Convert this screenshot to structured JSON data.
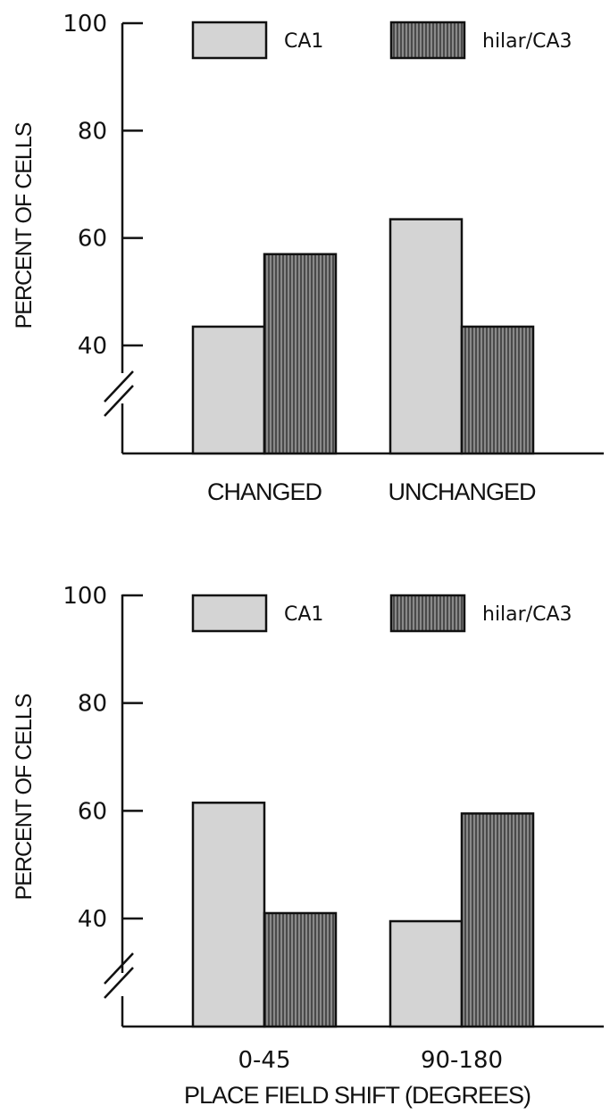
{
  "chart_data": [
    {
      "type": "bar",
      "categories": [
        "CHANGED",
        "UNCHANGED"
      ],
      "series": [
        {
          "name": "CA1",
          "values": [
            43.5,
            63.5
          ],
          "color": "#d4d4d4"
        },
        {
          "name": "hilar/CA3",
          "values": [
            57,
            43.5
          ],
          "color": "#6e6e6e"
        }
      ],
      "ylabel": "PERCENT OF CELLS",
      "xlabel": "",
      "yticks": [
        "40",
        "60",
        "80",
        "100"
      ],
      "ylim": [
        20,
        100
      ],
      "axis_break": true,
      "legend": "top",
      "grid": false
    },
    {
      "type": "bar",
      "categories": [
        "0-45",
        "90-180"
      ],
      "series": [
        {
          "name": "CA1",
          "values": [
            61.5,
            39.5
          ],
          "color": "#d4d4d4"
        },
        {
          "name": "hilar/CA3",
          "values": [
            41,
            59.5
          ],
          "color": "#6e6e6e"
        }
      ],
      "ylabel": "PERCENT OF CELLS",
      "xlabel": "PLACE FIELD SHIFT (DEGREES)",
      "yticks": [
        "40",
        "60",
        "80",
        "100"
      ],
      "ylim": [
        20,
        100
      ],
      "axis_break": true,
      "legend": "top",
      "grid": false
    }
  ]
}
